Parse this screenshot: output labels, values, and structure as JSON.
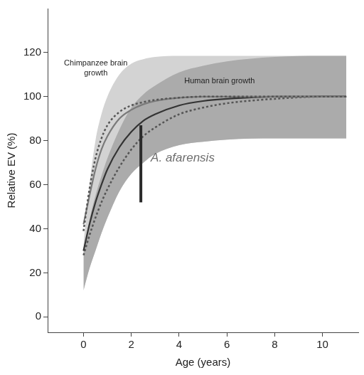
{
  "chart_data": {
    "type": "line",
    "x_label": "Age (years)",
    "y_label": "Relative EV (%)",
    "xlim": [
      -1.5,
      11.5
    ],
    "ylim": [
      -7,
      140
    ],
    "xticks": [
      0,
      2,
      4,
      6,
      8,
      10
    ],
    "yticks": [
      0,
      20,
      40,
      60,
      80,
      100,
      120
    ],
    "grid": false,
    "x": [
      0,
      0.25,
      0.5,
      0.75,
      1,
      1.5,
      2,
      2.5,
      3,
      4,
      5,
      6,
      8,
      10,
      11
    ],
    "bands": [
      {
        "color": "#d3d3d3",
        "lower": [
          12,
          22,
          30,
          38,
          45,
          57,
          65,
          70,
          74,
          78,
          79.5,
          80.5,
          81,
          81,
          81
        ],
        "upper": [
          33,
          60,
          80,
          92,
          100,
          110,
          115,
          117,
          118,
          118.5,
          118.5,
          118.5,
          118.5,
          118.5,
          118.5
        ]
      },
      {
        "color": "#ababab",
        "lower": [
          12,
          22,
          30,
          38,
          45,
          57,
          65,
          70,
          74,
          78,
          79.5,
          80.5,
          81,
          81,
          81
        ],
        "upper": [
          30,
          44,
          55,
          64,
          72,
          85,
          95,
          101,
          105,
          111,
          114,
          116,
          118,
          118.5,
          118.5
        ]
      }
    ],
    "series": [
      {
        "color": "#555555",
        "line_style": "dotted",
        "values": [
          39,
          58,
          72,
          81,
          87,
          93,
          96,
          97.5,
          98.5,
          99.5,
          100,
          100,
          100,
          100,
          100
        ]
      },
      {
        "color": "#7a7a7a",
        "line_style": "solid",
        "values": [
          42,
          55,
          67,
          76,
          82,
          90,
          94,
          96.5,
          98,
          99.5,
          100,
          100,
          100,
          100,
          100
        ]
      },
      {
        "color": "#333333",
        "line_style": "solid",
        "values": [
          30,
          42,
          52,
          60,
          67,
          77,
          84,
          89,
          92,
          96,
          98,
          99,
          100,
          100,
          100
        ]
      },
      {
        "color": "#555555",
        "line_style": "dotted",
        "values": [
          28,
          37,
          45,
          52,
          58,
          68,
          76,
          82,
          86,
          92,
          95,
          97,
          99,
          100,
          100
        ]
      }
    ],
    "range_bar": {
      "label": "A. afarensis",
      "x": 2.4,
      "low": 52,
      "high": 87,
      "color": "#2a2a2a"
    },
    "annotations": [
      "Chimpanzee brain growth",
      "Human brain growth"
    ]
  }
}
